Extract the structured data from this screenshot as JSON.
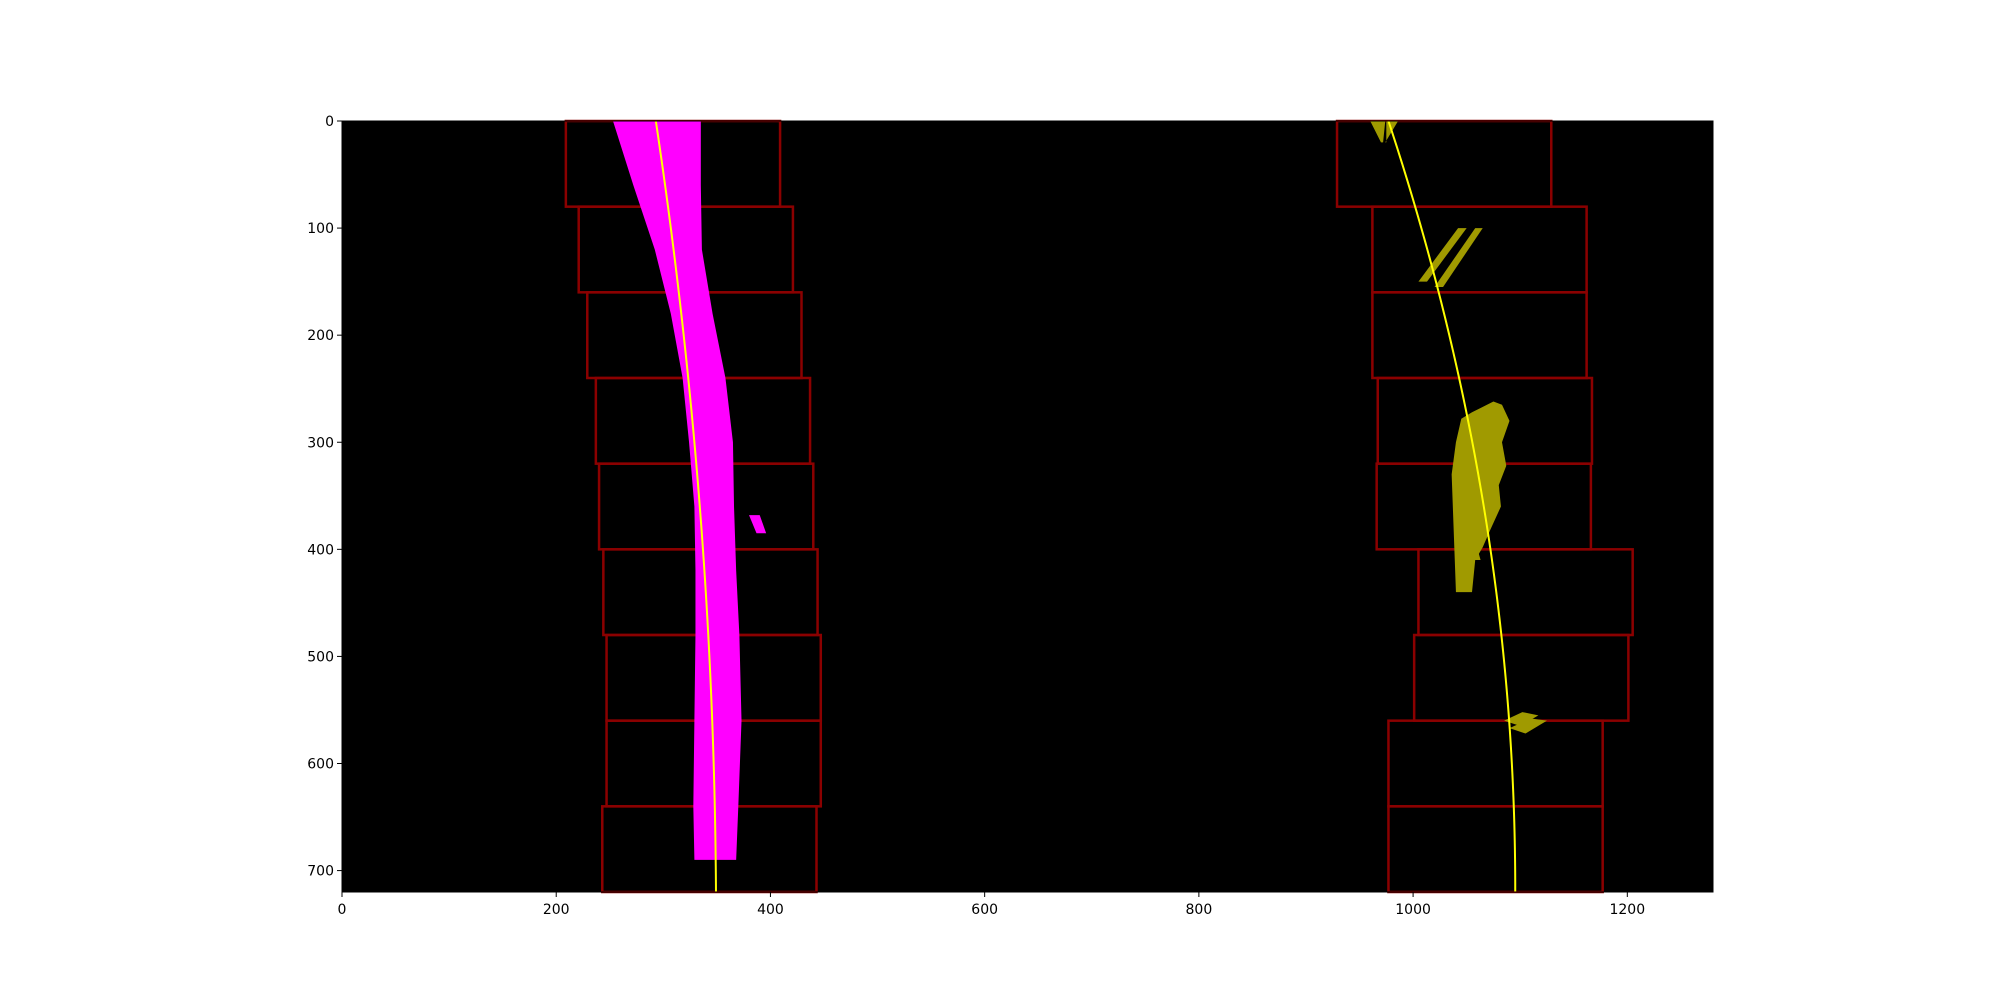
{
  "chart_data": {
    "type": "image",
    "xlim": [
      0,
      1280
    ],
    "ylim": [
      720,
      0
    ],
    "y_inverted": true,
    "grid": false,
    "legend": "none",
    "x_ticks": [
      0,
      200,
      400,
      600,
      800,
      1000,
      1200
    ],
    "y_ticks": [
      0,
      100,
      200,
      300,
      400,
      500,
      600,
      700
    ],
    "x_tick_labels": [
      "0",
      "200",
      "400",
      "600",
      "800",
      "1000",
      "1200"
    ],
    "y_tick_labels": [
      "0",
      "100",
      "200",
      "300",
      "400",
      "500",
      "600",
      "700"
    ],
    "colors": {
      "background": "#000000",
      "window": "#8b0000",
      "left_pixels": "#ff00ff",
      "right_pixels": "#a09a00",
      "fit_line": "#ffff00"
    },
    "sliding_windows": [
      {
        "lane": "left",
        "x": [
          209,
          409
        ],
        "y": [
          0,
          80
        ]
      },
      {
        "lane": "left",
        "x": [
          221,
          421
        ],
        "y": [
          80,
          160
        ]
      },
      {
        "lane": "left",
        "x": [
          229,
          429
        ],
        "y": [
          160,
          240
        ]
      },
      {
        "lane": "left",
        "x": [
          237,
          437
        ],
        "y": [
          240,
          320
        ]
      },
      {
        "lane": "left",
        "x": [
          240,
          440
        ],
        "y": [
          320,
          400
        ]
      },
      {
        "lane": "left",
        "x": [
          244,
          444
        ],
        "y": [
          400,
          480
        ]
      },
      {
        "lane": "left",
        "x": [
          247,
          447
        ],
        "y": [
          480,
          560
        ]
      },
      {
        "lane": "left",
        "x": [
          247,
          447
        ],
        "y": [
          560,
          640
        ]
      },
      {
        "lane": "left",
        "x": [
          243,
          443
        ],
        "y": [
          640,
          720
        ]
      },
      {
        "lane": "right",
        "x": [
          929,
          1129
        ],
        "y": [
          0,
          80
        ]
      },
      {
        "lane": "right",
        "x": [
          962,
          1162
        ],
        "y": [
          80,
          160
        ]
      },
      {
        "lane": "right",
        "x": [
          962,
          1162
        ],
        "y": [
          160,
          240
        ]
      },
      {
        "lane": "right",
        "x": [
          967,
          1167
        ],
        "y": [
          240,
          320
        ]
      },
      {
        "lane": "right",
        "x": [
          966,
          1166
        ],
        "y": [
          320,
          400
        ]
      },
      {
        "lane": "right",
        "x": [
          1005,
          1205
        ],
        "y": [
          400,
          480
        ]
      },
      {
        "lane": "right",
        "x": [
          1001,
          1201
        ],
        "y": [
          480,
          560
        ]
      },
      {
        "lane": "right",
        "x": [
          977,
          1177
        ],
        "y": [
          560,
          640
        ]
      },
      {
        "lane": "right",
        "x": [
          977,
          1177
        ],
        "y": [
          640,
          720
        ]
      }
    ],
    "left_lane_pixels": [
      {
        "x_left": [
          253,
          272,
          292,
          307,
          318,
          324,
          329,
          330,
          330,
          329,
          328,
          329
        ],
        "x_right": [
          335,
          335,
          336,
          346,
          358,
          365,
          366,
          368,
          371,
          373,
          370,
          368
        ],
        "y": [
          0,
          60,
          120,
          180,
          240,
          300,
          360,
          420,
          480,
          560,
          640,
          690
        ]
      },
      {
        "x_left": [
          380,
          387
        ],
        "x_right": [
          390,
          396
        ],
        "y": [
          368,
          385
        ]
      }
    ],
    "right_lane_pixels": [
      {
        "x": [
          955,
          960,
          970,
          972,
          974,
          963
        ],
        "y": [
          0,
          0,
          20,
          20,
          0,
          0
        ]
      },
      {
        "x": [
          975,
          986,
          974,
          975
        ],
        "y": [
          0,
          0,
          20,
          20
        ]
      },
      {
        "x": [
          1005,
          1013,
          1050,
          1042
        ],
        "y": [
          150,
          150,
          100,
          100
        ]
      },
      {
        "x": [
          1020,
          1028,
          1065,
          1058
        ],
        "y": [
          155,
          155,
          100,
          100
        ]
      },
      {
        "x": [
          1040,
          1055,
          1058,
          1065,
          1072,
          1082,
          1080,
          1087,
          1083,
          1090,
          1083,
          1075,
          1063,
          1055,
          1045,
          1040,
          1036
        ],
        "y": [
          440,
          440,
          410,
          398,
          382,
          360,
          340,
          322,
          300,
          280,
          265,
          262,
          268,
          272,
          278,
          300,
          330
        ]
      },
      {
        "x": [
          1052,
          1058,
          1063,
          1052
        ],
        "y": [
          400,
          392,
          410,
          410
        ]
      },
      {
        "x": [
          1085,
          1100,
          1117,
          1102
        ],
        "y": [
          560,
          565,
          555,
          552
        ]
      },
      {
        "x": [
          1090,
          1105,
          1125,
          1110
        ],
        "y": [
          567,
          572,
          560,
          558
        ]
      }
    ],
    "fit_lines": [
      {
        "lane": "left",
        "coefficients": [
          -0.0001,
          0.15,
          293
        ]
      },
      {
        "lane": "right",
        "coefficients": [
          -0.00023,
          0.33,
          977
        ]
      }
    ]
  }
}
